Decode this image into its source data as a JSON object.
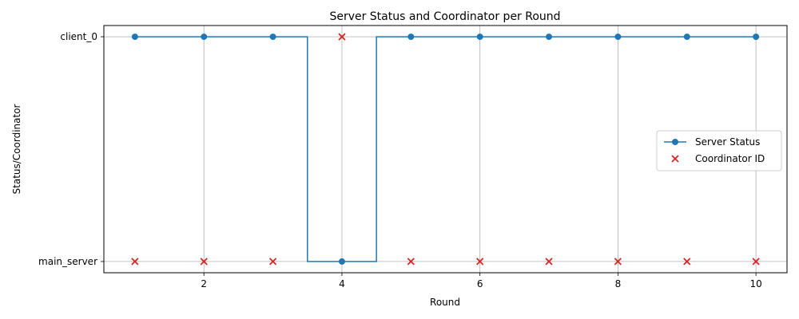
{
  "chart_data": {
    "type": "line",
    "title": "Server Status and Coordinator per Round",
    "xlabel": "Round",
    "ylabel": "Status/Coordinator",
    "x": [
      1,
      2,
      3,
      4,
      5,
      6,
      7,
      8,
      9,
      10
    ],
    "xlim": [
      0.55,
      10.45
    ],
    "xticks": [
      2,
      4,
      6,
      8,
      10
    ],
    "y_categories": [
      "main_server",
      "client_0"
    ],
    "ylim": [
      -0.05,
      1.05
    ],
    "grid": true,
    "legend_position": "center-right",
    "series": [
      {
        "name": "Server Status",
        "style": "step-line-with-circles",
        "color": "#1f77b4",
        "values": [
          "client_0",
          "client_0",
          "client_0",
          "main_server",
          "client_0",
          "client_0",
          "client_0",
          "client_0",
          "client_0",
          "client_0"
        ]
      },
      {
        "name": "Coordinator ID",
        "style": "scatter-x",
        "color": "#d62728",
        "values": [
          "main_server",
          "main_server",
          "main_server",
          "client_0",
          "main_server",
          "main_server",
          "main_server",
          "main_server",
          "main_server",
          "main_server"
        ]
      }
    ]
  }
}
